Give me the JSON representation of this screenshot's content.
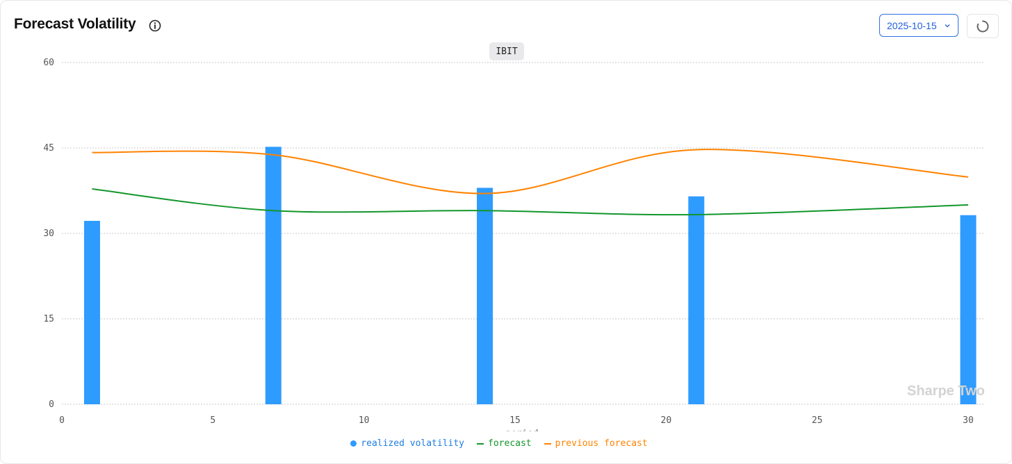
{
  "header": {
    "title": "Forecast Volatility",
    "date_value": "2025-10-15"
  },
  "icons": {
    "info": "info-icon",
    "chevron": "chevron-down-icon",
    "refresh": "refresh-spinner-icon"
  },
  "watermark": "Sharpe Two",
  "chart_data": {
    "type": "bar",
    "title": "IBIT",
    "xlabel": "period",
    "ylabel": "",
    "xlim": [
      0,
      30
    ],
    "ylim": [
      0,
      60
    ],
    "x_ticks": [
      0,
      5,
      10,
      15,
      20,
      25,
      30
    ],
    "y_ticks": [
      0,
      15,
      30,
      45,
      60
    ],
    "grid": true,
    "legend_position": "bottom",
    "series": [
      {
        "name": "realized volatility",
        "type": "bar",
        "color": "#2e9bff",
        "x": [
          1,
          7,
          14,
          21,
          30
        ],
        "values": [
          32.2,
          45.2,
          38.0,
          36.5,
          33.2
        ]
      },
      {
        "name": "forecast",
        "type": "line",
        "color": "#12962b",
        "x": [
          1,
          7,
          14,
          21,
          30
        ],
        "values": [
          37.8,
          34.0,
          34.0,
          33.3,
          35.0
        ]
      },
      {
        "name": "previous forecast",
        "type": "line",
        "color": "#ff8200",
        "x": [
          1,
          7,
          14,
          21,
          30
        ],
        "values": [
          44.2,
          43.8,
          37.0,
          44.7,
          39.9
        ]
      }
    ]
  }
}
